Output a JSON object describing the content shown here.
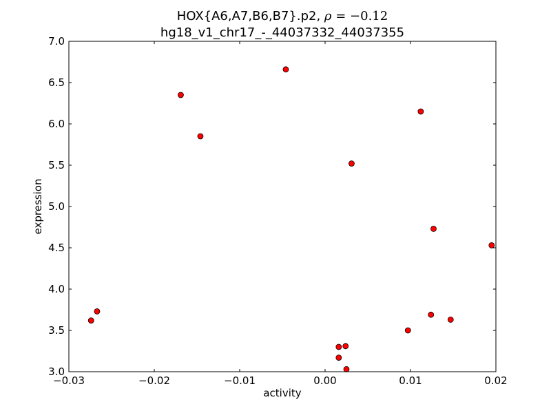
{
  "chart_data": {
    "type": "scatter",
    "title_prefix": "HOX{A6,A7,B6,B7}.p2, ",
    "title_rho_symbol": "ρ",
    "title_rho_value": " = −0.12",
    "subtitle": "hg18_v1_chr17_-_44037332_44037355",
    "xlabel": "activity",
    "ylabel": "expression",
    "xlim": [
      -0.03,
      0.02
    ],
    "ylim": [
      3.0,
      7.0
    ],
    "xticks": [
      -0.03,
      -0.02,
      -0.01,
      0.0,
      0.01,
      0.02
    ],
    "xtick_labels": [
      "−0.03",
      "−0.02",
      "−0.01",
      "0.00",
      "0.01",
      "0.02"
    ],
    "yticks": [
      3.0,
      3.5,
      4.0,
      4.5,
      5.0,
      5.5,
      6.0,
      6.5,
      7.0
    ],
    "ytick_labels": [
      "3.0",
      "3.5",
      "4.0",
      "4.5",
      "5.0",
      "5.5",
      "6.0",
      "6.5",
      "7.0"
    ],
    "grid": false,
    "marker_color": "#ff0000",
    "marker_edge_color": "#000000",
    "points": [
      {
        "x": -0.0274,
        "y": 3.62
      },
      {
        "x": -0.0267,
        "y": 3.73
      },
      {
        "x": -0.0169,
        "y": 6.35
      },
      {
        "x": -0.0146,
        "y": 5.85
      },
      {
        "x": -0.0046,
        "y": 6.66
      },
      {
        "x": 0.0016,
        "y": 3.3
      },
      {
        "x": 0.0016,
        "y": 3.17
      },
      {
        "x": 0.0024,
        "y": 3.31
      },
      {
        "x": 0.0025,
        "y": 3.03
      },
      {
        "x": 0.0031,
        "y": 5.52
      },
      {
        "x": 0.0097,
        "y": 3.5
      },
      {
        "x": 0.0112,
        "y": 6.15
      },
      {
        "x": 0.0124,
        "y": 3.69
      },
      {
        "x": 0.0127,
        "y": 4.73
      },
      {
        "x": 0.0147,
        "y": 3.63
      },
      {
        "x": 0.0195,
        "y": 4.53
      }
    ]
  }
}
